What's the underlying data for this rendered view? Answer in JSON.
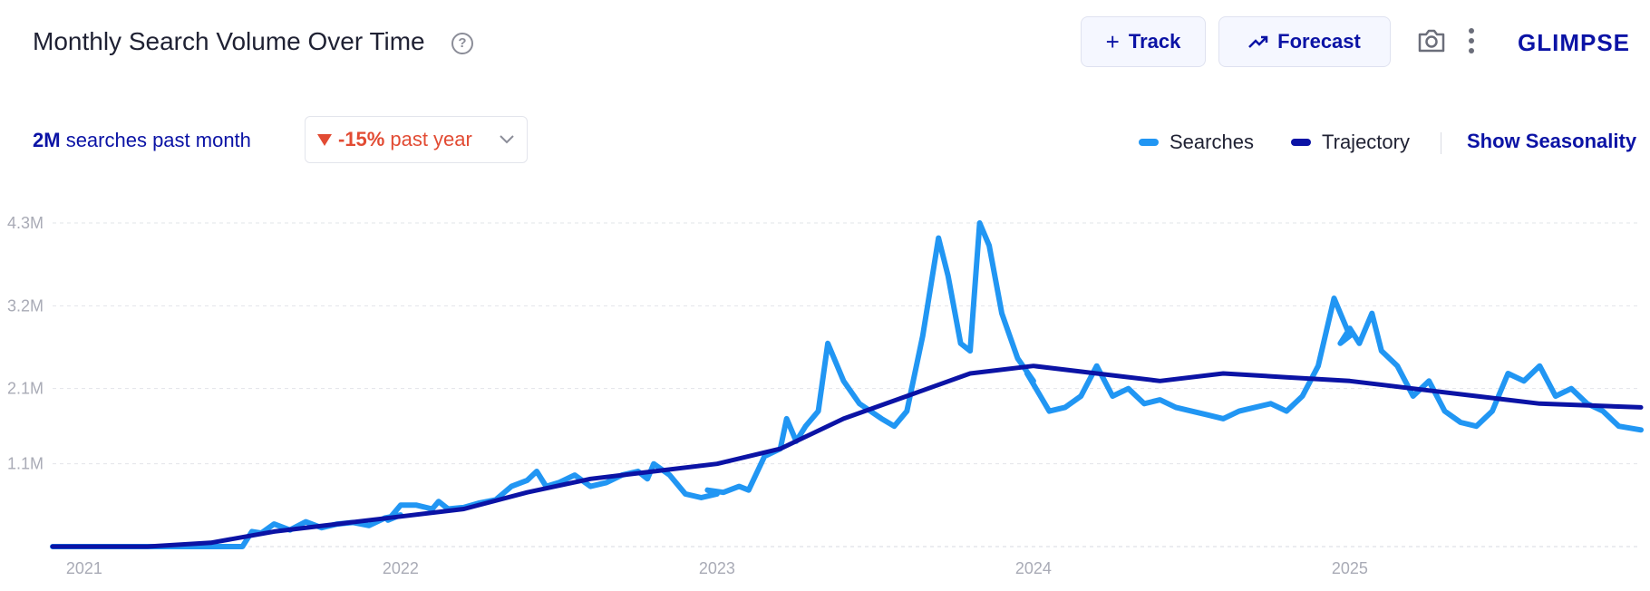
{
  "header": {
    "title": "Monthly Search Volume Over Time",
    "help_icon": "help-circle-icon",
    "track_label": "Track",
    "forecast_label": "Forecast",
    "logo_text": "GLIMPSE"
  },
  "stats": {
    "volume_value": "2M",
    "volume_text": "searches past month",
    "change_value": "-15%",
    "change_text": "past year",
    "change_color": "#e24b33"
  },
  "legend": {
    "series1": "Searches",
    "series2": "Trajectory",
    "seasonality": "Show Seasonality"
  },
  "colors": {
    "accent": "#0b13a5",
    "searches": "#2196f3",
    "trajectory": "#0b13a5"
  },
  "chart_data": {
    "type": "line",
    "y_ticks": [
      "1.1M",
      "2.1M",
      "3.2M",
      "4.3M"
    ],
    "y_tick_values": [
      1.1,
      2.1,
      3.2,
      4.3
    ],
    "x_ticks": [
      "2021",
      "2022",
      "2023",
      "2024",
      "2025"
    ],
    "x_tick_values": [
      2021.0,
      2022.0,
      2023.0,
      2024.0,
      2025.0
    ],
    "xlim": [
      2020.9,
      2025.92
    ],
    "ylim": [
      0,
      4.3
    ],
    "units": "millions of searches",
    "grid": true,
    "legend_position": "top-right",
    "series": [
      {
        "name": "Searches",
        "points": [
          [
            2020.9,
            0.0
          ],
          [
            2021.0,
            0.0
          ],
          [
            2021.2,
            0.0
          ],
          [
            2021.35,
            0.0
          ],
          [
            2021.5,
            0.0
          ],
          [
            2021.53,
            0.2
          ],
          [
            2021.56,
            0.18
          ],
          [
            2021.6,
            0.3
          ],
          [
            2021.65,
            0.22
          ],
          [
            2021.7,
            0.33
          ],
          [
            2021.75,
            0.25
          ],
          [
            2021.8,
            0.3
          ],
          [
            2021.85,
            0.32
          ],
          [
            2021.9,
            0.28
          ],
          [
            2021.95,
            0.38
          ],
          [
            2022.0,
            0.42
          ],
          [
            2021.96,
            0.35
          ],
          [
            2022.0,
            0.55
          ],
          [
            2022.05,
            0.55
          ],
          [
            2022.1,
            0.5
          ],
          [
            2022.12,
            0.6
          ],
          [
            2022.15,
            0.5
          ],
          [
            2022.2,
            0.52
          ],
          [
            2022.25,
            0.58
          ],
          [
            2022.3,
            0.62
          ],
          [
            2022.35,
            0.8
          ],
          [
            2022.4,
            0.88
          ],
          [
            2022.43,
            1.0
          ],
          [
            2022.46,
            0.8
          ],
          [
            2022.5,
            0.85
          ],
          [
            2022.55,
            0.95
          ],
          [
            2022.6,
            0.8
          ],
          [
            2022.65,
            0.85
          ],
          [
            2022.7,
            0.95
          ],
          [
            2022.75,
            1.0
          ],
          [
            2022.78,
            0.9
          ],
          [
            2022.8,
            1.1
          ],
          [
            2022.85,
            0.95
          ],
          [
            2022.9,
            0.7
          ],
          [
            2022.95,
            0.65
          ],
          [
            2023.0,
            0.7
          ],
          [
            2022.97,
            0.75
          ],
          [
            2023.02,
            0.72
          ],
          [
            2023.07,
            0.8
          ],
          [
            2023.1,
            0.75
          ],
          [
            2023.15,
            1.2
          ],
          [
            2023.2,
            1.3
          ],
          [
            2023.22,
            1.7
          ],
          [
            2023.25,
            1.4
          ],
          [
            2023.28,
            1.6
          ],
          [
            2023.32,
            1.8
          ],
          [
            2023.35,
            2.7
          ],
          [
            2023.4,
            2.2
          ],
          [
            2023.45,
            1.9
          ],
          [
            2023.52,
            1.7
          ],
          [
            2023.56,
            1.6
          ],
          [
            2023.6,
            1.8
          ],
          [
            2023.65,
            2.8
          ],
          [
            2023.7,
            4.1
          ],
          [
            2023.73,
            3.6
          ],
          [
            2023.77,
            2.7
          ],
          [
            2023.8,
            2.6
          ],
          [
            2023.83,
            4.3
          ],
          [
            2023.86,
            4.0
          ],
          [
            2023.9,
            3.1
          ],
          [
            2023.95,
            2.5
          ],
          [
            2024.0,
            2.2
          ],
          [
            2023.98,
            2.3
          ],
          [
            2024.05,
            1.8
          ],
          [
            2024.1,
            1.85
          ],
          [
            2024.15,
            2.0
          ],
          [
            2024.2,
            2.4
          ],
          [
            2024.25,
            2.0
          ],
          [
            2024.3,
            2.1
          ],
          [
            2024.35,
            1.9
          ],
          [
            2024.4,
            1.95
          ],
          [
            2024.45,
            1.85
          ],
          [
            2024.5,
            1.8
          ],
          [
            2024.55,
            1.75
          ],
          [
            2024.6,
            1.7
          ],
          [
            2024.65,
            1.8
          ],
          [
            2024.7,
            1.85
          ],
          [
            2024.75,
            1.9
          ],
          [
            2024.8,
            1.8
          ],
          [
            2024.85,
            2.0
          ],
          [
            2024.9,
            2.4
          ],
          [
            2024.95,
            3.3
          ],
          [
            2025.0,
            2.8
          ],
          [
            2024.97,
            2.7
          ],
          [
            2025.0,
            2.9
          ],
          [
            2025.03,
            2.7
          ],
          [
            2025.07,
            3.1
          ],
          [
            2025.1,
            2.6
          ],
          [
            2025.15,
            2.4
          ],
          [
            2025.2,
            2.0
          ],
          [
            2025.25,
            2.2
          ],
          [
            2025.3,
            1.8
          ],
          [
            2025.35,
            1.65
          ],
          [
            2025.4,
            1.6
          ],
          [
            2025.45,
            1.8
          ],
          [
            2025.5,
            2.3
          ],
          [
            2025.55,
            2.2
          ],
          [
            2025.6,
            2.4
          ],
          [
            2025.65,
            2.0
          ],
          [
            2025.7,
            2.1
          ],
          [
            2025.75,
            1.9
          ],
          [
            2025.8,
            1.8
          ],
          [
            2025.85,
            1.6
          ],
          [
            2025.92,
            1.55
          ]
        ]
      },
      {
        "name": "Trajectory",
        "points": [
          [
            2020.9,
            0.0
          ],
          [
            2021.2,
            0.0
          ],
          [
            2021.4,
            0.05
          ],
          [
            2021.6,
            0.2
          ],
          [
            2021.8,
            0.3
          ],
          [
            2022.0,
            0.4
          ],
          [
            2022.2,
            0.5
          ],
          [
            2022.4,
            0.72
          ],
          [
            2022.6,
            0.9
          ],
          [
            2022.8,
            1.0
          ],
          [
            2023.0,
            1.1
          ],
          [
            2023.2,
            1.3
          ],
          [
            2023.4,
            1.7
          ],
          [
            2023.6,
            2.0
          ],
          [
            2023.8,
            2.3
          ],
          [
            2024.0,
            2.4
          ],
          [
            2024.2,
            2.3
          ],
          [
            2024.4,
            2.2
          ],
          [
            2024.6,
            2.3
          ],
          [
            2024.8,
            2.25
          ],
          [
            2025.0,
            2.2
          ],
          [
            2025.2,
            2.1
          ],
          [
            2025.4,
            2.0
          ],
          [
            2025.6,
            1.9
          ],
          [
            2025.92,
            1.85
          ]
        ]
      }
    ]
  }
}
